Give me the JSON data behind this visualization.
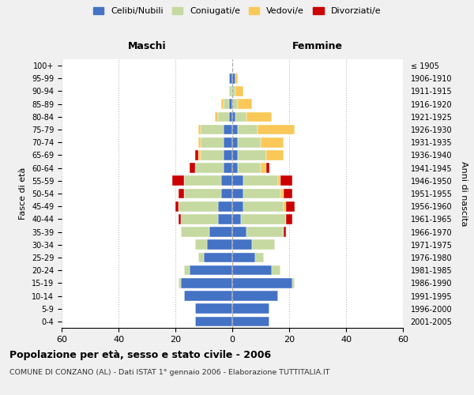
{
  "age_groups": [
    "0-4",
    "5-9",
    "10-14",
    "15-19",
    "20-24",
    "25-29",
    "30-34",
    "35-39",
    "40-44",
    "45-49",
    "50-54",
    "55-59",
    "60-64",
    "65-69",
    "70-74",
    "75-79",
    "80-84",
    "85-89",
    "90-94",
    "95-99",
    "100+"
  ],
  "birth_years": [
    "2001-2005",
    "1996-2000",
    "1991-1995",
    "1986-1990",
    "1981-1985",
    "1976-1980",
    "1971-1975",
    "1966-1970",
    "1961-1965",
    "1956-1960",
    "1951-1955",
    "1946-1950",
    "1941-1945",
    "1936-1940",
    "1931-1935",
    "1926-1930",
    "1921-1925",
    "1916-1920",
    "1911-1915",
    "1906-1910",
    "≤ 1905"
  ],
  "maschi": {
    "celibi": [
      13,
      13,
      17,
      18,
      15,
      10,
      9,
      8,
      5,
      5,
      4,
      4,
      3,
      3,
      3,
      3,
      1,
      1,
      0,
      1,
      0
    ],
    "coniugati": [
      0,
      0,
      0,
      1,
      2,
      2,
      4,
      10,
      13,
      14,
      13,
      13,
      10,
      8,
      8,
      8,
      4,
      2,
      1,
      0,
      0
    ],
    "vedovi": [
      0,
      0,
      0,
      0,
      0,
      0,
      0,
      0,
      0,
      0,
      0,
      0,
      0,
      1,
      1,
      1,
      1,
      1,
      0,
      0,
      0
    ],
    "divorziati": [
      0,
      0,
      0,
      0,
      0,
      0,
      0,
      0,
      1,
      1,
      2,
      4,
      2,
      1,
      0,
      0,
      0,
      0,
      0,
      0,
      0
    ]
  },
  "femmine": {
    "nubili": [
      13,
      13,
      16,
      21,
      14,
      8,
      7,
      5,
      3,
      4,
      4,
      4,
      2,
      2,
      2,
      2,
      1,
      0,
      0,
      1,
      0
    ],
    "coniugate": [
      0,
      0,
      0,
      1,
      3,
      3,
      8,
      13,
      16,
      14,
      13,
      12,
      8,
      10,
      8,
      7,
      4,
      2,
      1,
      0,
      0
    ],
    "vedove": [
      0,
      0,
      0,
      0,
      0,
      0,
      0,
      0,
      0,
      1,
      1,
      1,
      2,
      6,
      8,
      13,
      9,
      5,
      3,
      1,
      0
    ],
    "divorziate": [
      0,
      0,
      0,
      0,
      0,
      0,
      0,
      1,
      2,
      3,
      3,
      4,
      1,
      0,
      0,
      0,
      0,
      0,
      0,
      0,
      0
    ]
  },
  "colors": {
    "celibi": "#4472C4",
    "coniugati": "#C5D9A0",
    "vedovi": "#FAC858",
    "divorziati": "#CC0000"
  },
  "legend_labels": [
    "Celibi/Nubili",
    "Coniugati/e",
    "Vedovi/e",
    "Divorziati/e"
  ],
  "xlim": 60,
  "title": "Popolazione per età, sesso e stato civile - 2006",
  "subtitle": "COMUNE DI CONZANO (AL) - Dati ISTAT 1° gennaio 2006 - Elaborazione TUTTITALIA.IT",
  "ylabel_left": "Fasce di età",
  "ylabel_right": "Anni di nascita",
  "xlabel_left": "Maschi",
  "xlabel_right": "Femmine",
  "bg_color": "#f0f0f0",
  "plot_bg": "#ffffff"
}
